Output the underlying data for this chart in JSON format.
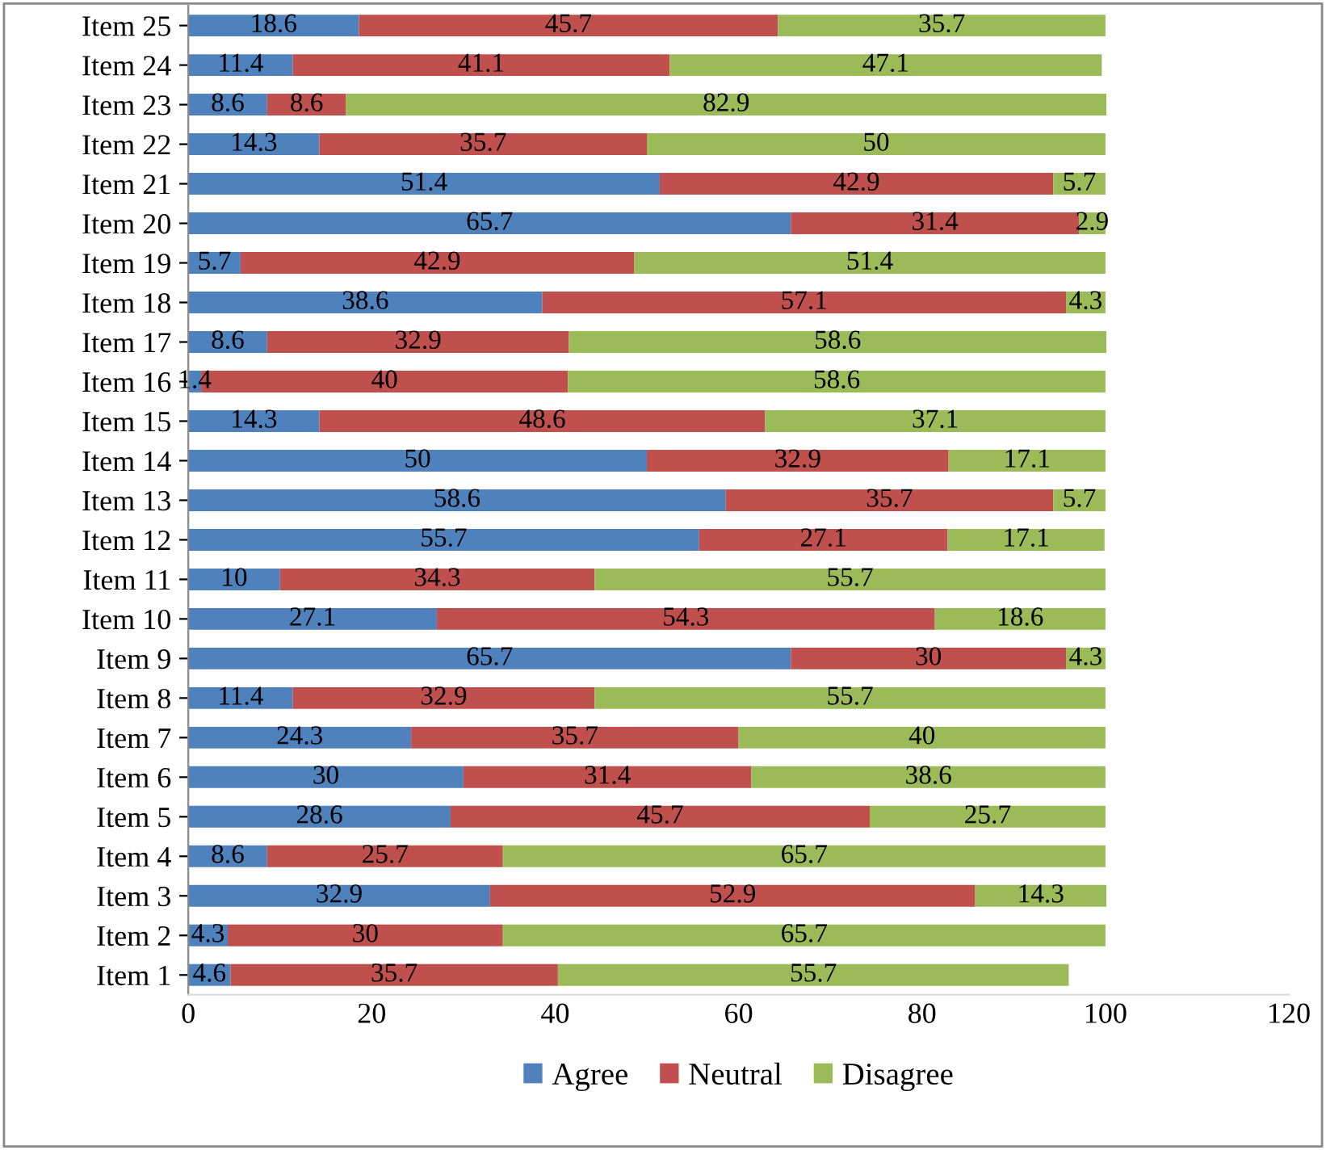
{
  "chart_data": {
    "type": "bar",
    "orientation": "horizontal",
    "stacked": true,
    "data_labels": true,
    "legend": "bottom",
    "grid": false,
    "categories": [
      "Item 25",
      "Item 24",
      "Item 23",
      "Item 22",
      "Item 21",
      "Item 20",
      "Item 19",
      "Item 18",
      "Item 17",
      "Item 16",
      "Item 15",
      "Item 14",
      "Item 13",
      "Item 12",
      "Item 11",
      "Item 10",
      "Item 9",
      "Item 8",
      "Item 7",
      "Item 6",
      "Item 5",
      "Item 4",
      "Item 3",
      "Item 2",
      "Item 1"
    ],
    "xlim": [
      0,
      120
    ],
    "xticks": [
      0,
      20,
      40,
      60,
      80,
      100,
      120
    ],
    "series": [
      {
        "name": "Agree",
        "color": "#4f81bd",
        "values": [
          18.6,
          11.4,
          8.6,
          14.3,
          51.4,
          65.7,
          5.7,
          38.6,
          8.6,
          1.4,
          14.3,
          50,
          58.6,
          55.7,
          10,
          27.1,
          65.7,
          11.4,
          24.3,
          30,
          28.6,
          8.6,
          32.9,
          4.3,
          4.6
        ]
      },
      {
        "name": "Neutral",
        "color": "#c0504d",
        "values": [
          45.7,
          41.1,
          8.6,
          35.7,
          42.9,
          31.4,
          42.9,
          57.1,
          32.9,
          40,
          48.6,
          32.9,
          35.7,
          27.1,
          34.3,
          54.3,
          30,
          32.9,
          35.7,
          31.4,
          45.7,
          25.7,
          52.9,
          30,
          35.7
        ]
      },
      {
        "name": "Disagree",
        "color": "#9bbb59",
        "values": [
          35.7,
          47.1,
          82.9,
          50,
          5.7,
          2.9,
          51.4,
          4.3,
          58.6,
          58.6,
          37.1,
          17.1,
          5.7,
          17.1,
          55.7,
          18.6,
          4.3,
          55.7,
          40,
          38.6,
          25.7,
          65.7,
          14.3,
          65.7,
          55.7
        ]
      }
    ]
  }
}
